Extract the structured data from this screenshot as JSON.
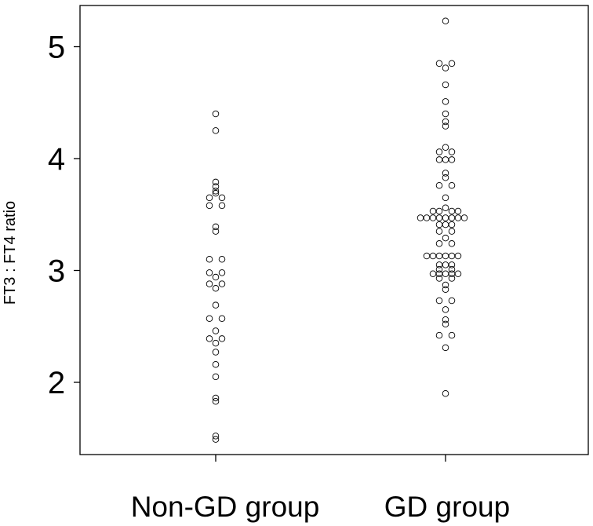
{
  "chart_data": {
    "type": "scatter",
    "ylabel": "FT3 : FT4 ratio",
    "xlabel": "",
    "categories": [
      "Non-GD group",
      "GD group"
    ],
    "y_ticks": [
      "2",
      "3",
      "4",
      "5"
    ],
    "ylim": [
      1.4,
      5.38
    ],
    "series": [
      {
        "category": "Non-GD group",
        "points": [
          {
            "y": 4.4,
            "dx": 0
          },
          {
            "y": 4.25,
            "dx": 0
          },
          {
            "y": 3.79,
            "dx": 0
          },
          {
            "y": 3.75,
            "dx": 0
          },
          {
            "y": 3.71,
            "dx": 0
          },
          {
            "y": 3.69,
            "dx": 0
          },
          {
            "y": 3.65,
            "dx": -1
          },
          {
            "y": 3.65,
            "dx": 1
          },
          {
            "y": 3.58,
            "dx": -1
          },
          {
            "y": 3.58,
            "dx": 1
          },
          {
            "y": 3.39,
            "dx": 0
          },
          {
            "y": 3.35,
            "dx": 0
          },
          {
            "y": 3.1,
            "dx": -1
          },
          {
            "y": 3.1,
            "dx": 1
          },
          {
            "y": 2.98,
            "dx": -1
          },
          {
            "y": 2.98,
            "dx": 1
          },
          {
            "y": 2.94,
            "dx": 0
          },
          {
            "y": 2.88,
            "dx": -1
          },
          {
            "y": 2.88,
            "dx": 1
          },
          {
            "y": 2.84,
            "dx": 0
          },
          {
            "y": 2.69,
            "dx": 0
          },
          {
            "y": 2.57,
            "dx": -1
          },
          {
            "y": 2.57,
            "dx": 1
          },
          {
            "y": 2.46,
            "dx": 0
          },
          {
            "y": 2.39,
            "dx": -1
          },
          {
            "y": 2.39,
            "dx": 1
          },
          {
            "y": 2.35,
            "dx": 0
          },
          {
            "y": 2.27,
            "dx": 0
          },
          {
            "y": 2.16,
            "dx": 0
          },
          {
            "y": 2.05,
            "dx": 0
          },
          {
            "y": 1.86,
            "dx": 0
          },
          {
            "y": 1.83,
            "dx": 0
          },
          {
            "y": 1.52,
            "dx": 0
          },
          {
            "y": 1.49,
            "dx": 0
          }
        ]
      },
      {
        "category": "GD group",
        "points": [
          {
            "y": 5.23,
            "dx": 0
          },
          {
            "y": 4.85,
            "dx": -1
          },
          {
            "y": 4.85,
            "dx": 1
          },
          {
            "y": 4.81,
            "dx": 0
          },
          {
            "y": 4.66,
            "dx": 0
          },
          {
            "y": 4.51,
            "dx": 0
          },
          {
            "y": 4.4,
            "dx": 0
          },
          {
            "y": 4.33,
            "dx": 0
          },
          {
            "y": 4.29,
            "dx": 0
          },
          {
            "y": 4.1,
            "dx": 0
          },
          {
            "y": 4.06,
            "dx": -1
          },
          {
            "y": 4.06,
            "dx": 1
          },
          {
            "y": 3.99,
            "dx": -1
          },
          {
            "y": 3.99,
            "dx": 0
          },
          {
            "y": 3.99,
            "dx": 1
          },
          {
            "y": 3.87,
            "dx": 0
          },
          {
            "y": 3.83,
            "dx": 0
          },
          {
            "y": 3.76,
            "dx": -1
          },
          {
            "y": 3.76,
            "dx": 1
          },
          {
            "y": 3.65,
            "dx": 0
          },
          {
            "y": 3.56,
            "dx": 0
          },
          {
            "y": 3.53,
            "dx": -2
          },
          {
            "y": 3.53,
            "dx": -1
          },
          {
            "y": 3.53,
            "dx": 1
          },
          {
            "y": 3.53,
            "dx": 2
          },
          {
            "y": 3.47,
            "dx": -4
          },
          {
            "y": 3.47,
            "dx": -3
          },
          {
            "y": 3.47,
            "dx": -2
          },
          {
            "y": 3.47,
            "dx": -1
          },
          {
            "y": 3.47,
            "dx": 0
          },
          {
            "y": 3.47,
            "dx": 1
          },
          {
            "y": 3.47,
            "dx": 2
          },
          {
            "y": 3.47,
            "dx": 3
          },
          {
            "y": 3.41,
            "dx": -1
          },
          {
            "y": 3.41,
            "dx": 0
          },
          {
            "y": 3.41,
            "dx": 1
          },
          {
            "y": 3.35,
            "dx": -1
          },
          {
            "y": 3.35,
            "dx": 1
          },
          {
            "y": 3.29,
            "dx": 0
          },
          {
            "y": 3.24,
            "dx": -1
          },
          {
            "y": 3.24,
            "dx": 1
          },
          {
            "y": 3.13,
            "dx": -3
          },
          {
            "y": 3.13,
            "dx": -2
          },
          {
            "y": 3.13,
            "dx": -1
          },
          {
            "y": 3.13,
            "dx": 0
          },
          {
            "y": 3.13,
            "dx": 1
          },
          {
            "y": 3.13,
            "dx": 2
          },
          {
            "y": 3.05,
            "dx": -1
          },
          {
            "y": 3.05,
            "dx": 0
          },
          {
            "y": 3.05,
            "dx": 1
          },
          {
            "y": 3.01,
            "dx": -1
          },
          {
            "y": 3.01,
            "dx": 1
          },
          {
            "y": 2.97,
            "dx": -2
          },
          {
            "y": 2.97,
            "dx": -1
          },
          {
            "y": 2.97,
            "dx": 0
          },
          {
            "y": 2.97,
            "dx": 1
          },
          {
            "y": 2.97,
            "dx": 2
          },
          {
            "y": 2.93,
            "dx": -1
          },
          {
            "y": 2.93,
            "dx": 1
          },
          {
            "y": 2.87,
            "dx": 0
          },
          {
            "y": 2.83,
            "dx": 0
          },
          {
            "y": 2.73,
            "dx": -1
          },
          {
            "y": 2.73,
            "dx": 1
          },
          {
            "y": 2.65,
            "dx": 0
          },
          {
            "y": 2.56,
            "dx": 0
          },
          {
            "y": 2.52,
            "dx": 0
          },
          {
            "y": 2.42,
            "dx": -1
          },
          {
            "y": 2.42,
            "dx": 1
          },
          {
            "y": 2.31,
            "dx": 0
          },
          {
            "y": 1.9,
            "dx": 0
          }
        ]
      }
    ],
    "grid": false,
    "legend": "none"
  }
}
